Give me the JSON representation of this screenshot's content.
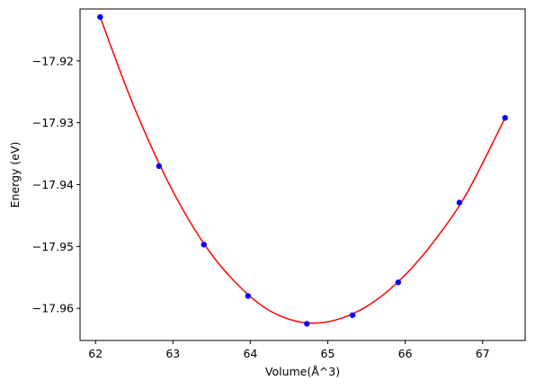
{
  "chart_data": {
    "type": "scatter",
    "xlabel": "Volume(Å^3)",
    "ylabel": "Energy (eV)",
    "xlim": [
      61.8,
      67.55
    ],
    "ylim": [
      -17.9652,
      -17.9116
    ],
    "xticks": [
      62,
      63,
      64,
      65,
      66,
      67
    ],
    "yticks": [
      -17.92,
      -17.93,
      -17.94,
      -17.95,
      -17.96
    ],
    "grid": false,
    "series": [
      {
        "kind": "points",
        "color": "#0000ff",
        "x": [
          62.06,
          62.82,
          63.4,
          63.97,
          64.73,
          65.32,
          65.91,
          66.7,
          67.29
        ],
        "y": [
          -17.9129,
          -17.937,
          -17.9497,
          -17.958,
          -17.9625,
          -17.9611,
          -17.9558,
          -17.9429,
          -17.9292
        ]
      },
      {
        "kind": "fit-curve",
        "color": "#ff0000",
        "x": [
          62.06,
          62.5,
          63.0,
          63.5,
          64.0,
          64.4,
          64.8,
          65.2,
          65.6,
          66.0,
          66.4,
          66.8,
          67.29
        ],
        "y": [
          -17.9129,
          -17.9275,
          -17.9411,
          -17.9513,
          -17.9581,
          -17.9613,
          -17.9624,
          -17.9615,
          -17.9589,
          -17.9546,
          -17.9487,
          -17.9413,
          -17.9292
        ]
      }
    ]
  },
  "colors": {
    "fit": "#ff0000",
    "points": "#0000ff",
    "axes": "#000000",
    "background": "#ffffff"
  }
}
